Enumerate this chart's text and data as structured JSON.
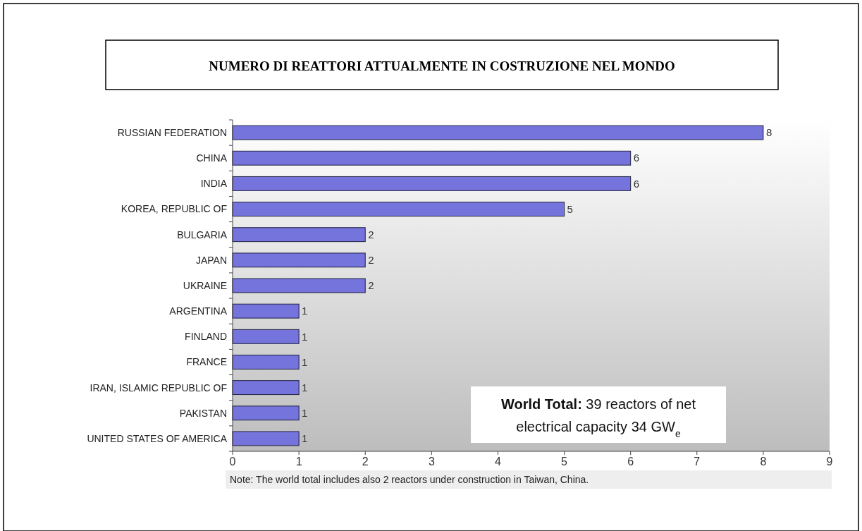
{
  "chart_data": {
    "type": "bar",
    "orientation": "horizontal",
    "title": "NUMERO DI REATTORI ATTUALMENTE IN COSTRUZIONE NEL MONDO",
    "categories": [
      "RUSSIAN FEDERATION",
      "CHINA",
      "INDIA",
      "KOREA, REPUBLIC OF",
      "BULGARIA",
      "JAPAN",
      "UKRAINE",
      "ARGENTINA",
      "FINLAND",
      "FRANCE",
      "IRAN, ISLAMIC REPUBLIC OF",
      "PAKISTAN",
      "UNITED STATES OF AMERICA"
    ],
    "values": [
      8,
      6,
      6,
      5,
      2,
      2,
      2,
      1,
      1,
      1,
      1,
      1,
      1
    ],
    "color": "#7474dc",
    "xlim": [
      0,
      9
    ],
    "xticks": [
      0,
      1,
      2,
      3,
      4,
      5,
      6,
      7,
      8,
      9
    ],
    "data_labels": true,
    "grid": false,
    "annotations": [
      "World Total: 39 reactors of net electrical capacity 34 GW$_{e}$",
      "Note: The world total includes also 2 reactors under construction in Taiwan, China."
    ]
  }
}
